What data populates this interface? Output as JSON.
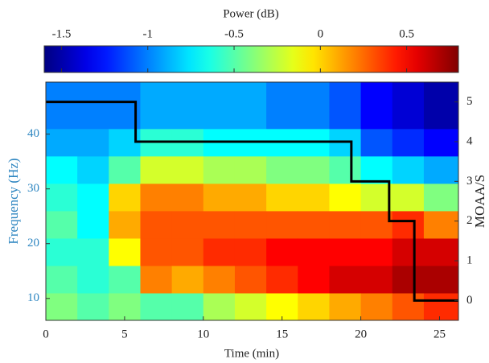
{
  "chart_data": {
    "type": "heatmap",
    "colormap": "jet",
    "colorbar_label": "Power (dB)",
    "clim": [
      -1.6,
      0.8
    ],
    "colorbar_ticks": [
      -1.5,
      -1,
      -0.5,
      0,
      0.5
    ],
    "x_label": "Time (min)",
    "y_label": "Frequency (Hz)",
    "y2_label": "MOAA/S",
    "y_axis_color": "#2e86c1",
    "xlim": [
      0,
      26.2
    ],
    "ylim": [
      6,
      49.5
    ],
    "y2lim": [
      -0.5,
      5.5
    ],
    "xticks": [
      0,
      5,
      10,
      15,
      20,
      25
    ],
    "yticks": [
      10,
      20,
      30,
      40
    ],
    "y2ticks": [
      0,
      1,
      2,
      3,
      4,
      5
    ],
    "x_edges": [
      0,
      2,
      4,
      6,
      8,
      10,
      12,
      14,
      16,
      18,
      20,
      22,
      24,
      26.2
    ],
    "y_edges": [
      6,
      11,
      16,
      21,
      26,
      31,
      36,
      41,
      49.5
    ],
    "z": [
      [
        -0.4,
        -0.5,
        -0.6,
        -0.5,
        -0.6,
        -0.7,
        -0.9,
        -1.0
      ],
      [
        -0.5,
        -0.6,
        -0.6,
        -0.7,
        -0.7,
        -0.8,
        -0.9,
        -1.0
      ],
      [
        -0.4,
        -0.5,
        -0.1,
        0.1,
        0.0,
        -0.5,
        -0.8,
        -1.0
      ],
      [
        -0.5,
        0.2,
        0.3,
        0.3,
        0.2,
        -0.2,
        -0.6,
        -0.9
      ],
      [
        -0.5,
        0.1,
        0.3,
        0.3,
        0.2,
        -0.2,
        -0.6,
        -0.9
      ],
      [
        -0.3,
        0.2,
        0.4,
        0.3,
        0.1,
        -0.3,
        -0.7,
        -0.9
      ],
      [
        -0.2,
        0.3,
        0.4,
        0.3,
        0.1,
        -0.3,
        -0.7,
        -0.9
      ],
      [
        -0.1,
        0.4,
        0.5,
        0.3,
        0.0,
        -0.4,
        -0.7,
        -1.0
      ],
      [
        0.0,
        0.5,
        0.5,
        0.3,
        0.0,
        -0.4,
        -0.7,
        -1.0
      ],
      [
        0.1,
        0.6,
        0.5,
        0.3,
        -0.1,
        -0.5,
        -0.8,
        -1.1
      ],
      [
        0.2,
        0.6,
        0.5,
        0.3,
        -0.2,
        -0.7,
        -1.1,
        -1.3
      ],
      [
        0.3,
        0.7,
        0.6,
        0.4,
        -0.2,
        -0.8,
        -1.2,
        -1.4
      ],
      [
        0.4,
        0.7,
        0.6,
        0.2,
        -0.4,
        -0.9,
        -1.3,
        -1.5
      ]
    ],
    "series": [
      {
        "type": "line",
        "axis": "y2",
        "color": "#000000",
        "x": [
          0,
          5.7,
          5.7,
          19.4,
          19.4,
          21.8,
          21.8,
          23.4,
          23.4,
          26.2
        ],
        "values": [
          5,
          5,
          4,
          4,
          3,
          3,
          2,
          2,
          0,
          0
        ]
      }
    ]
  }
}
